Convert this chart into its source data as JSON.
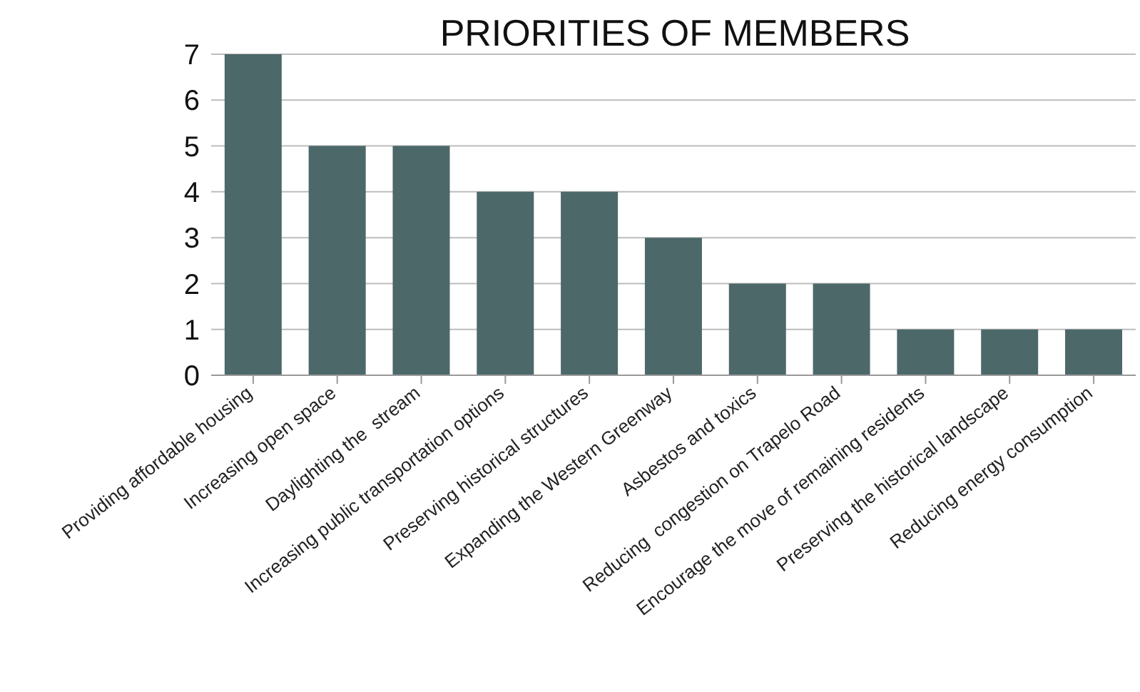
{
  "chart_data": {
    "type": "bar",
    "title": "PRIORITIES OF MEMBERS",
    "categories": [
      "Providing affordable housing",
      "Increasing open space",
      "Daylighting the  stream",
      "Increasing public transportation options",
      "Preserving historical structures",
      "Expanding the Western Greenway",
      "Asbestos and toxics",
      "Reducing  congestion on Trapelo Road",
      "Encourage the move of remaining residents",
      "Preserving the historical landscape",
      "Reducing energy consumption"
    ],
    "values": [
      7,
      5,
      5,
      4,
      4,
      3,
      2,
      2,
      1,
      1,
      1
    ],
    "color": "#4d6869",
    "ylim": [
      0,
      7
    ],
    "yticks": [
      0,
      1,
      2,
      3,
      4,
      5,
      6,
      7
    ],
    "grid": "y",
    "legend": false
  }
}
